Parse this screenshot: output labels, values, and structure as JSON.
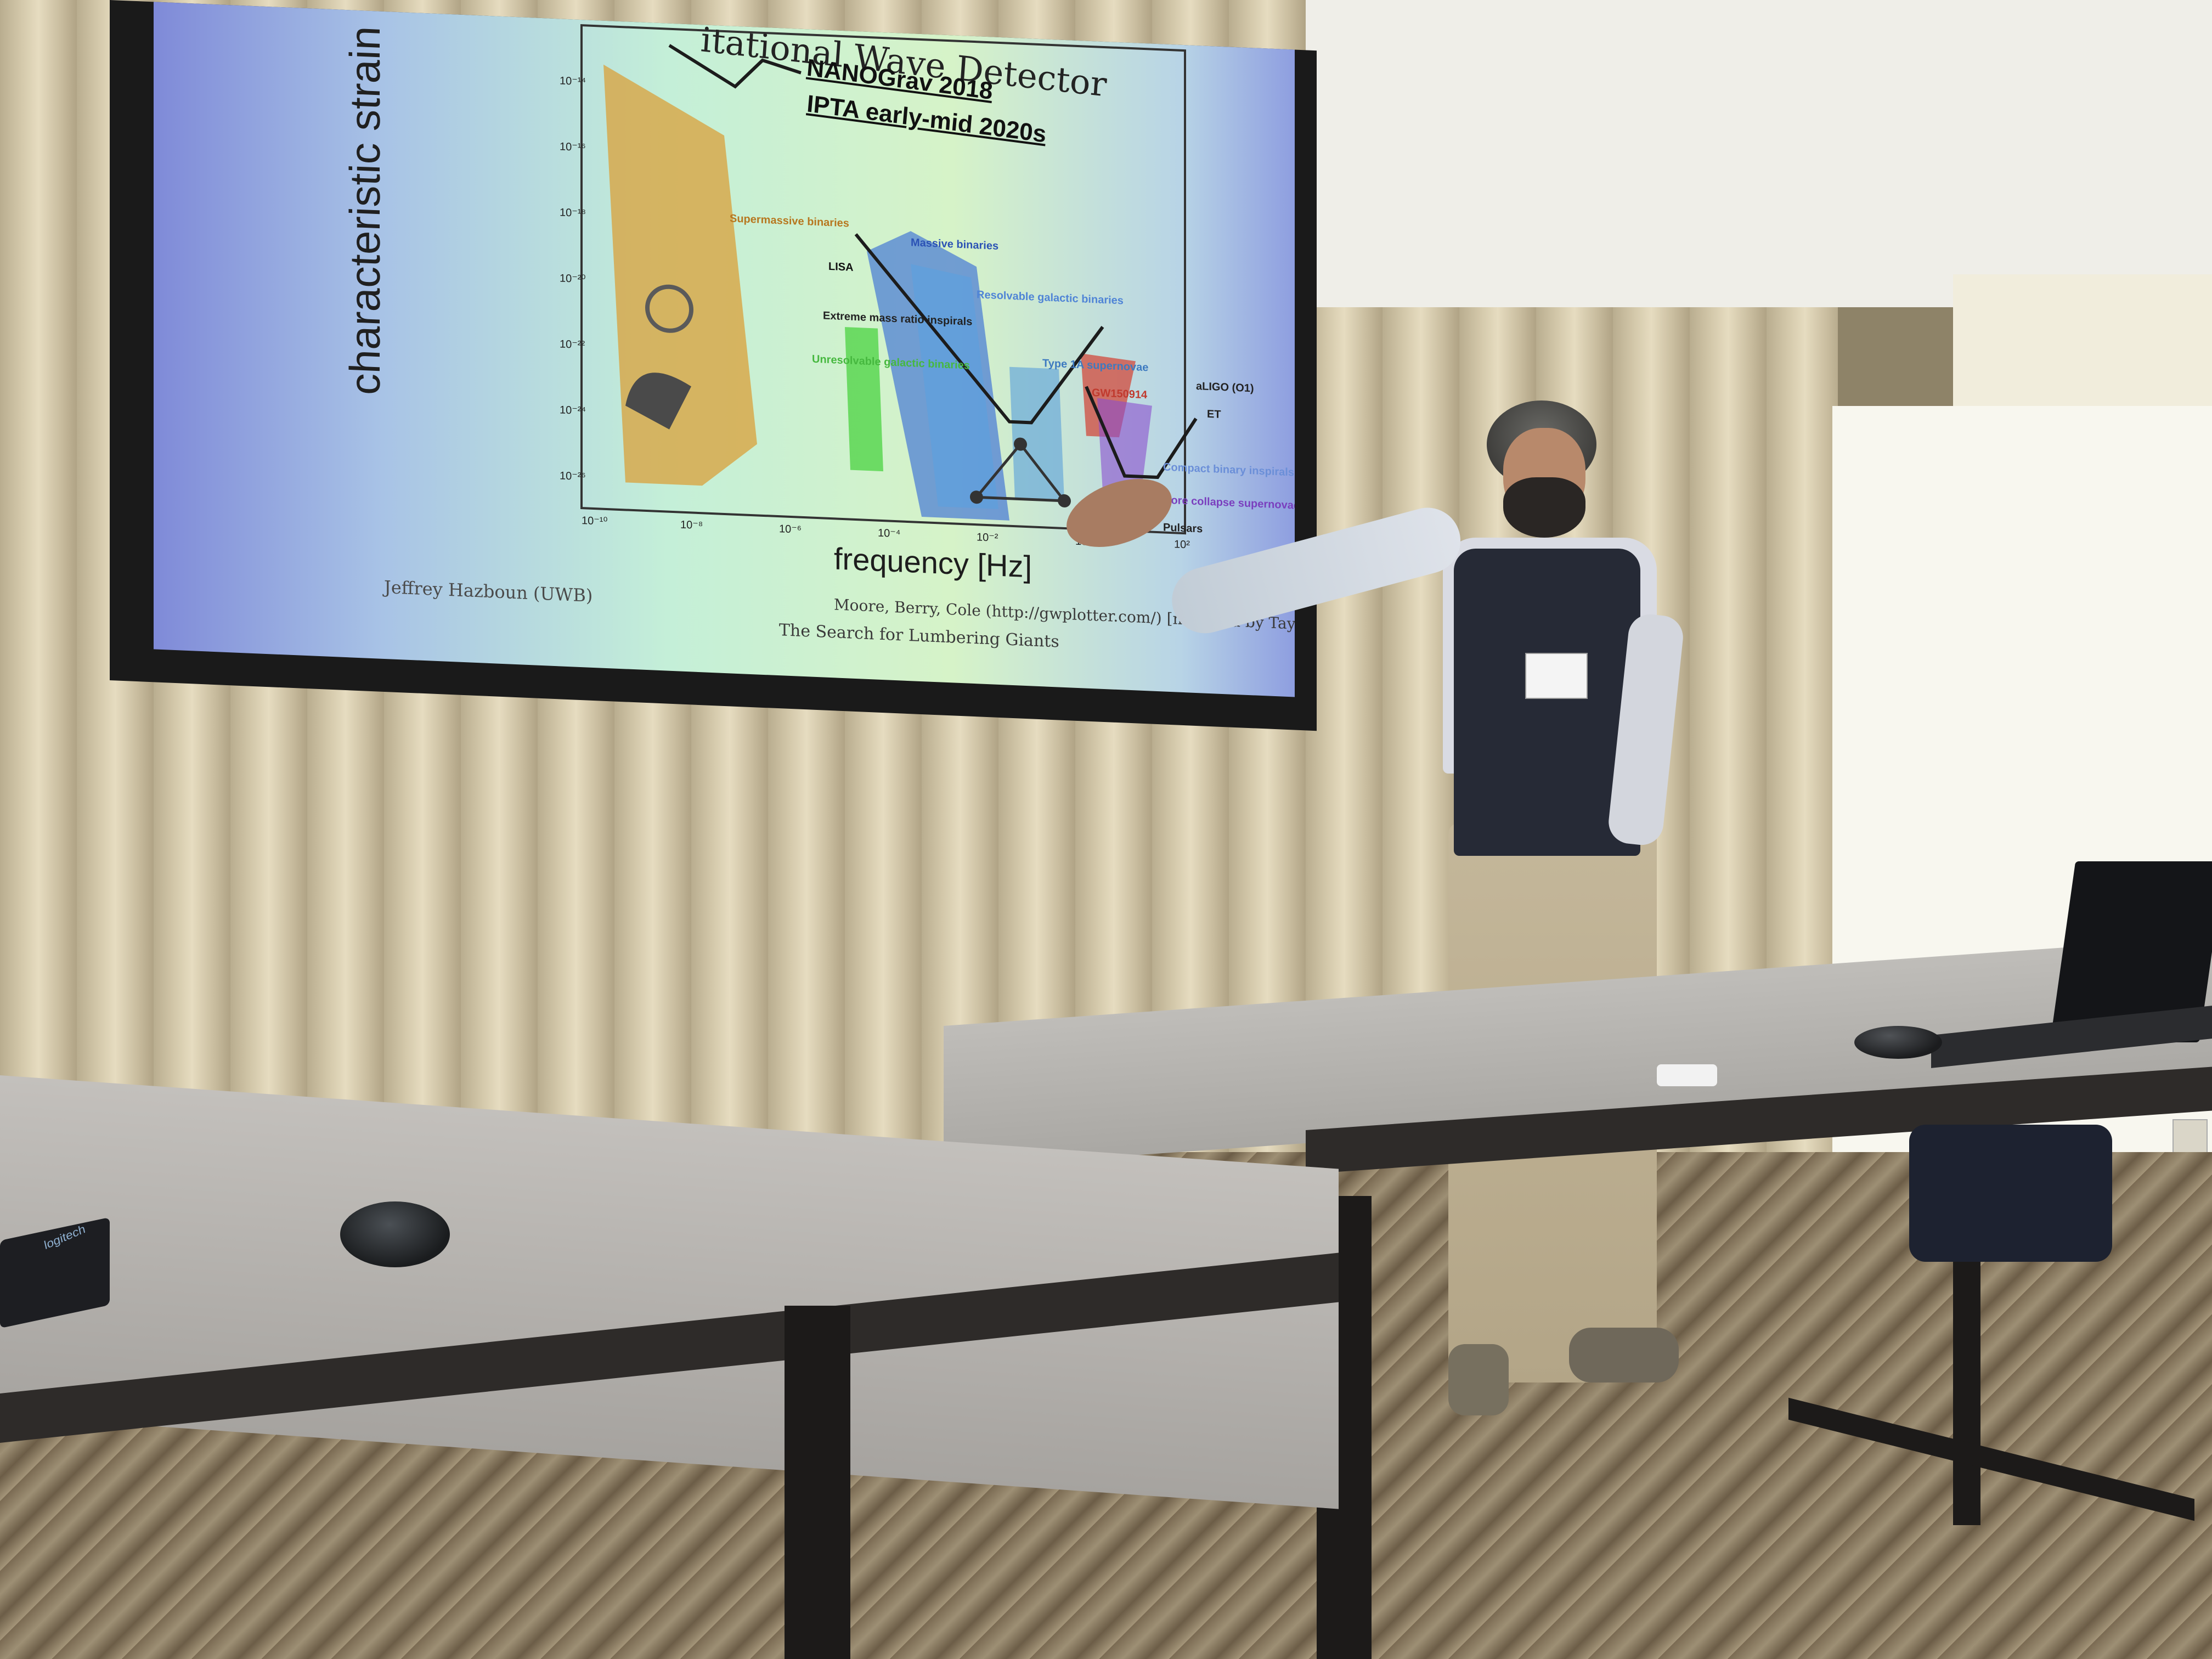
{
  "scene": {
    "type": "photo",
    "description_labels": []
  },
  "slide": {
    "title": "itational Wave Detector",
    "y_axis_label": "characteristic strain",
    "x_axis_label": "frequency [Hz]",
    "legend_1": "NANOGrav 2018",
    "legend_2": "IPTA early-mid 2020s",
    "footer_left": "Jeffrey Hazboun  (UWB)",
    "footer_center": "The Search for Lumbering Giants",
    "credit": "Moore, Berry, Cole (http://gwplotter.com/) [modified by Taylor]",
    "y_ticks": [
      "10⁻¹⁴",
      "10⁻¹⁶",
      "10⁻¹⁸",
      "10⁻²⁰",
      "10⁻²²",
      "10⁻²⁴",
      "10⁻²⁶"
    ],
    "x_ticks": [
      "10⁻¹⁰",
      "10⁻⁸",
      "10⁻⁶",
      "10⁻⁴",
      "10⁻²",
      "10⁰",
      "10²"
    ],
    "region_labels": {
      "supermassive": "Supermassive binaries",
      "massive": "Massive binaries",
      "lisa": "LISA",
      "resolvable": "Resolvable galactic binaries",
      "extreme": "Extreme mass ratio inspirals",
      "unresolvable": "Unresolvable galactic binaries",
      "type1a": "Type 1A supernovae",
      "gw150914": "GW150914",
      "aligo": "aLIGO (O1)",
      "et": "ET",
      "compact": "Compact binary inspirals",
      "core_collapse": "Core collapse supernovae",
      "pulsars": "Pulsars"
    }
  },
  "objects": {
    "keyboard_brand": "logitech"
  },
  "colors": {
    "slide_green": "#c4efd8",
    "slide_blue": "#7f8ad8",
    "supermassive_orange": "#d9a03a",
    "massive_blue": "#3b6fd6",
    "gw_red": "#d24a3c",
    "purple": "#8a4fcf"
  }
}
